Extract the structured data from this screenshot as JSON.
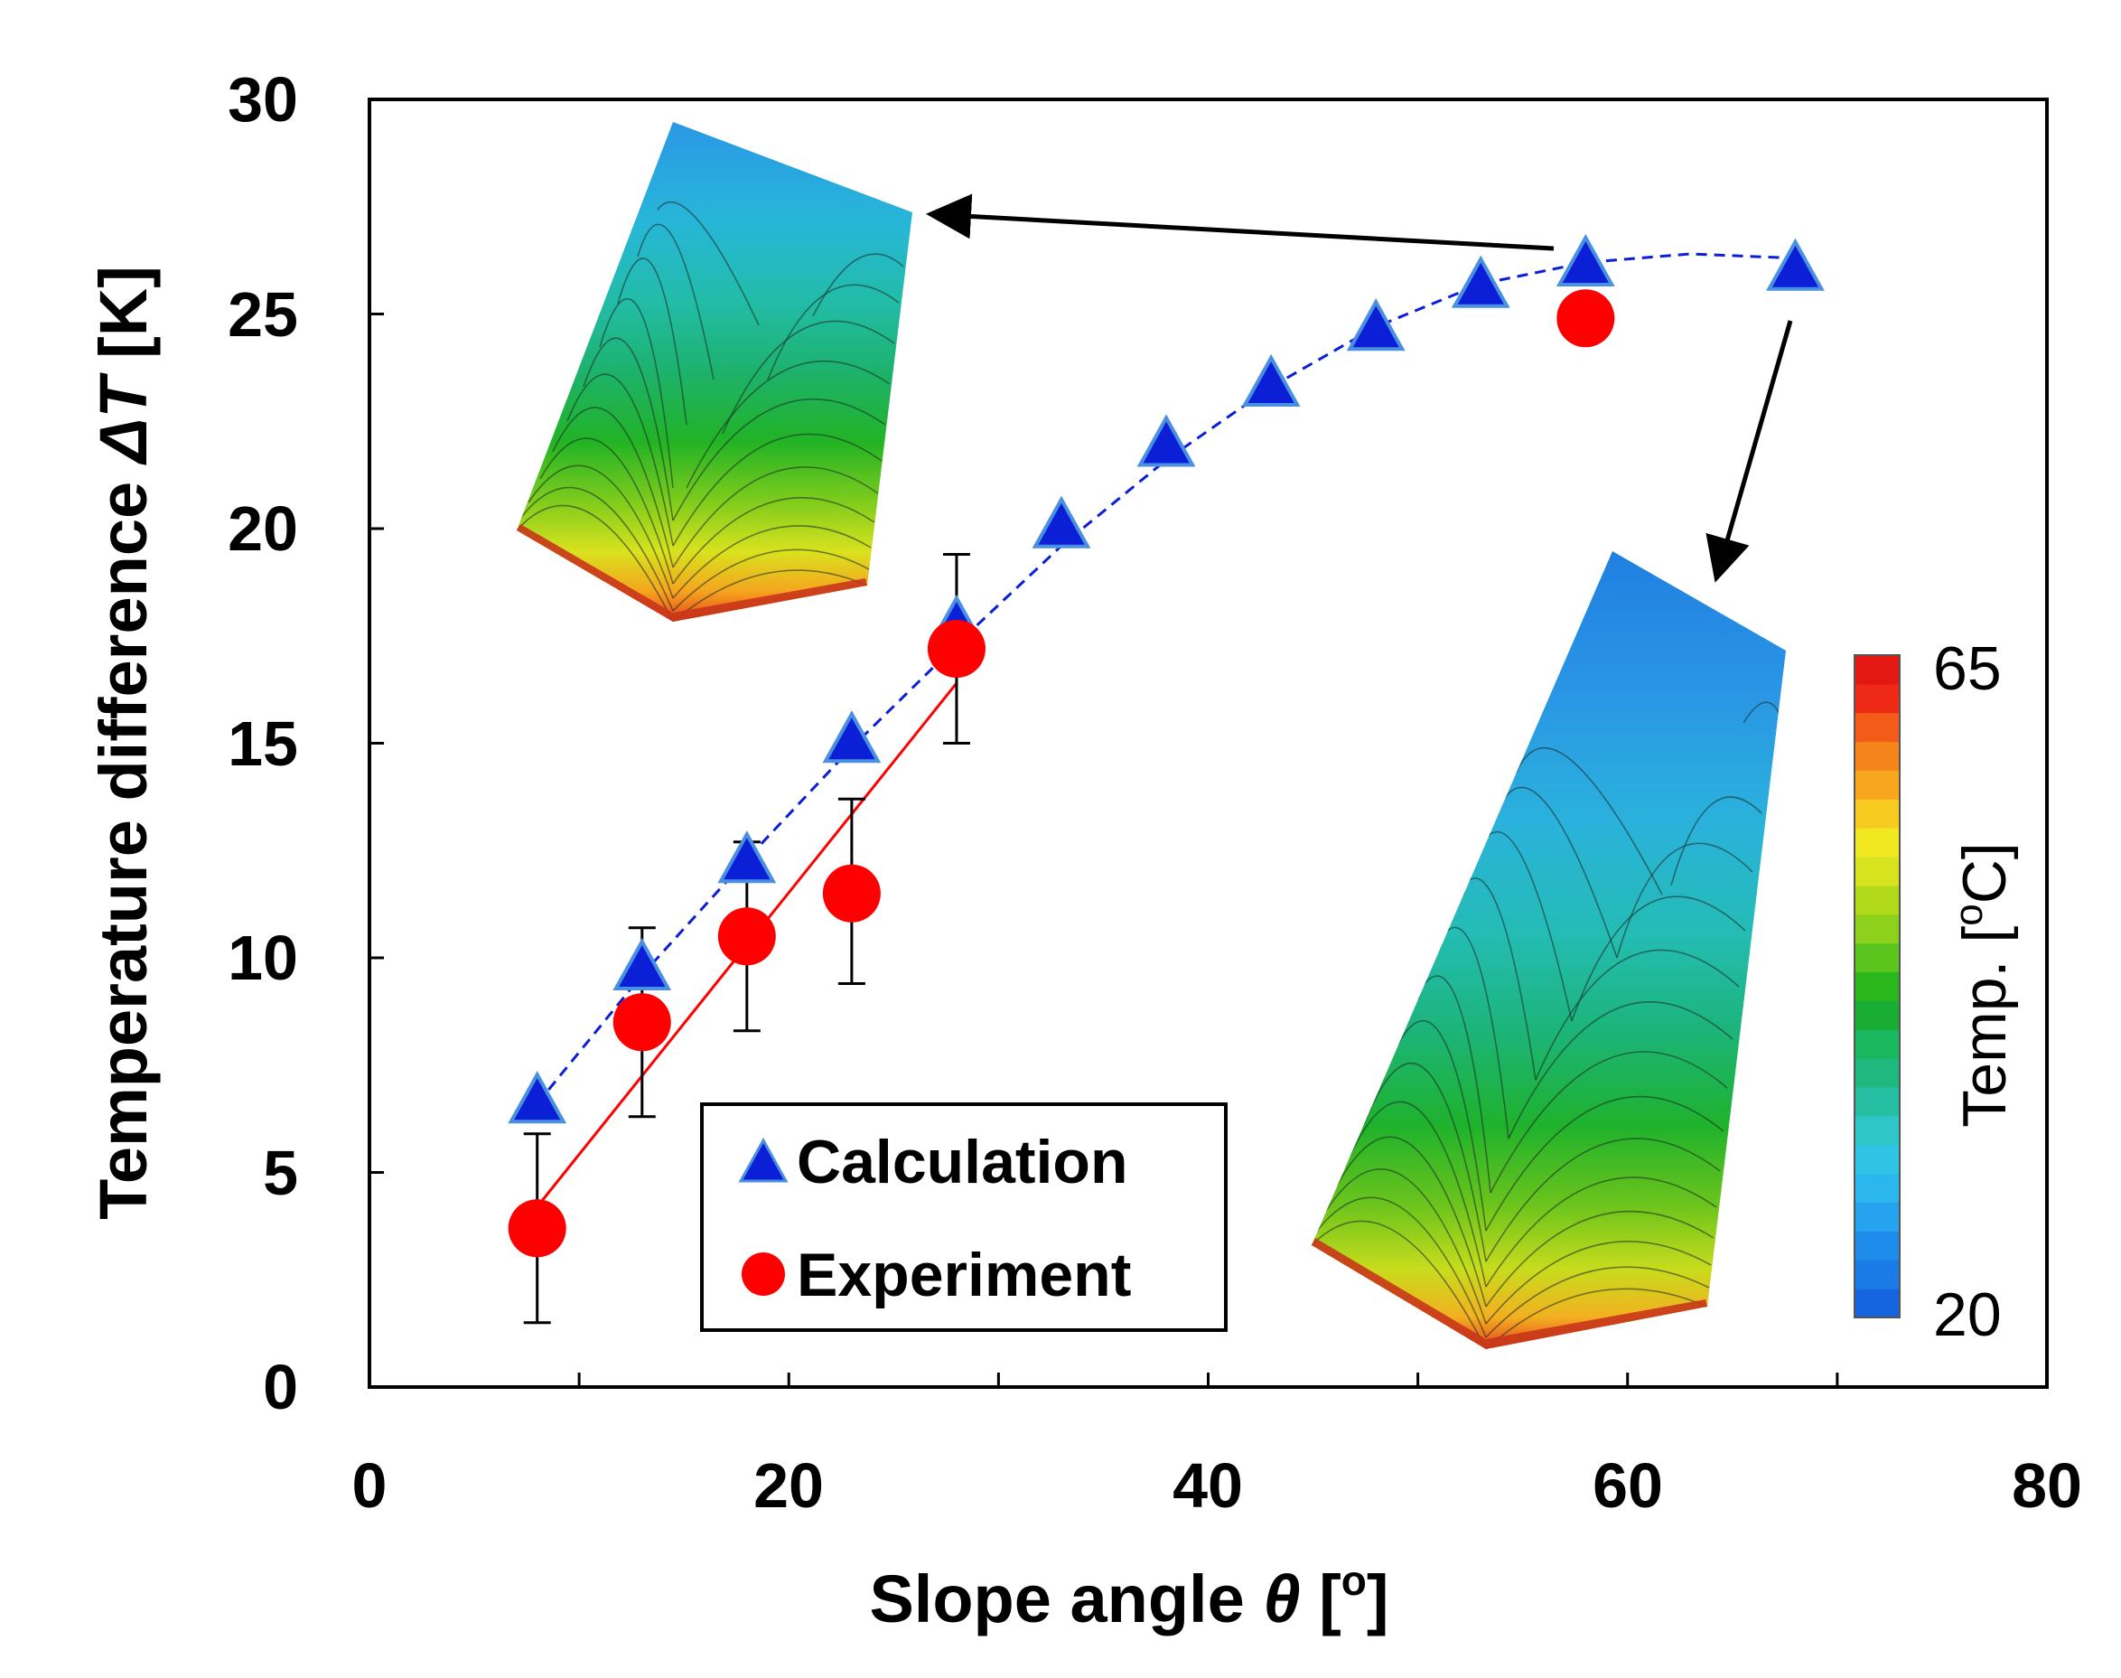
{
  "chart_data": {
    "type": "scatter",
    "xlabel_main": "Slope angle ",
    "xlabel_symbol": "θ",
    "xlabel_unit_open": " [",
    "xlabel_unit_sup": "o",
    "xlabel_unit_close": "]",
    "ylabel_main": "Temperature difference ",
    "ylabel_symbol": "ΔT",
    "ylabel_unit": " [K]",
    "xlim": [
      0,
      80
    ],
    "ylim": [
      0,
      30
    ],
    "xticks": [
      0,
      20,
      40,
      60,
      80
    ],
    "yticks": [
      0,
      5,
      10,
      15,
      20,
      25,
      30
    ],
    "series": [
      {
        "name": "Calculation",
        "marker": "triangle",
        "color": "#0a1fd6",
        "edge_color": "#4a90e2",
        "x": [
          8,
          13,
          18,
          23,
          28,
          33,
          38,
          43,
          48,
          53,
          58,
          68
        ],
        "y": [
          6.6,
          9.7,
          12.2,
          15.0,
          17.7,
          20.0,
          21.9,
          23.3,
          24.6,
          25.6,
          26.1,
          26.0
        ]
      },
      {
        "name": "Experiment",
        "marker": "circle",
        "color": "#ff0000",
        "x": [
          8,
          13,
          18,
          23,
          28,
          58
        ],
        "y": [
          3.7,
          8.5,
          10.5,
          11.5,
          17.2,
          24.9
        ],
        "err_low": [
          1.5,
          6.3,
          8.3,
          9.4,
          15.0,
          null
        ],
        "err_high": [
          5.9,
          10.7,
          12.7,
          13.7,
          19.4,
          null
        ]
      }
    ],
    "calc_fit_curve": {
      "style": "dashed",
      "color": "#0a1fd6",
      "x": [
        8,
        13,
        18,
        23,
        28,
        33,
        38,
        43,
        48,
        53,
        58,
        63,
        68
      ],
      "y": [
        6.6,
        9.6,
        12.3,
        14.9,
        17.3,
        19.6,
        21.6,
        23.3,
        24.7,
        25.7,
        26.2,
        26.4,
        26.3
      ]
    },
    "exp_fit_line": {
      "style": "solid",
      "color": "#ff0000",
      "x": [
        8,
        28
      ],
      "y": [
        4.2,
        16.4
      ]
    },
    "legend": {
      "position": "lower-middle",
      "entries": [
        "Calculation",
        "Experiment"
      ]
    },
    "colorbar": {
      "label_main": "Temp. [",
      "label_sup": "o",
      "label_close": "C]",
      "min_label": "20",
      "max_label": "65",
      "min": 20,
      "max": 65,
      "colors": [
        "#1565e0",
        "#1a7ae6",
        "#1e8cea",
        "#25a3ee",
        "#2bb6ee",
        "#30c4e4",
        "#2fc6c8",
        "#27bfa3",
        "#1fb87e",
        "#1ab85e",
        "#19ae33",
        "#2ab71c",
        "#5cc51d",
        "#8ed11c",
        "#b3d91b",
        "#d7e31d",
        "#f2e822",
        "#f8cb20",
        "#f7a61d",
        "#f5841b",
        "#f25c18",
        "#ee2a16",
        "#e31812"
      ]
    },
    "annotations": [
      {
        "type": "arrow",
        "from_point": [
          58,
          26.1
        ],
        "to": "small inset"
      },
      {
        "type": "arrow",
        "from_point": [
          68,
          26.0
        ],
        "to": "large inset"
      }
    ],
    "insets": [
      {
        "description_name": "temperature-contour-58deg"
      },
      {
        "description_name": "temperature-contour-68deg"
      }
    ]
  }
}
